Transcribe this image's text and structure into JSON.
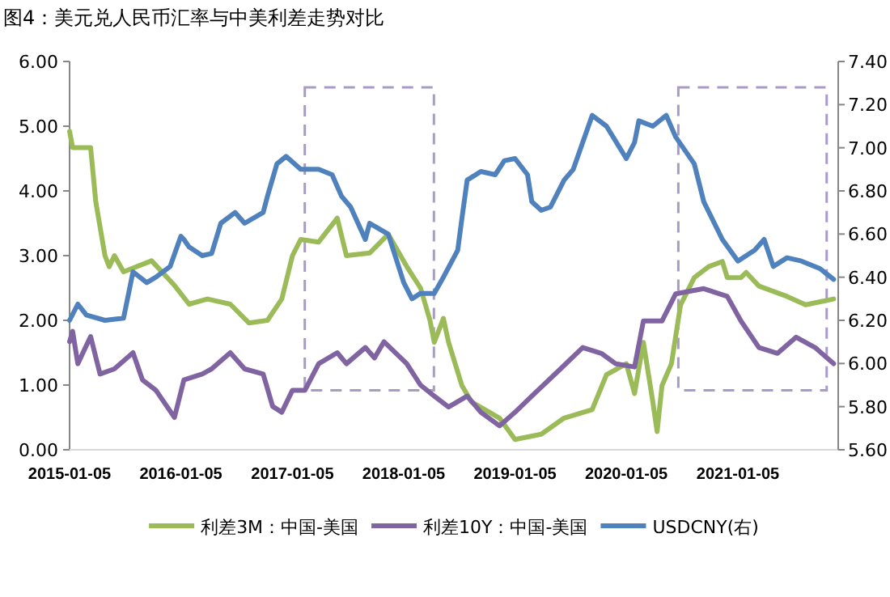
{
  "chart_data": {
    "type": "line",
    "title": "图4：美元兑人民币汇率与中美利差走势对比",
    "xlim": [
      "2015-01-05",
      "2021-11-30"
    ],
    "xticks": [
      {
        "value": "2015-01-05",
        "label": "2015-01-05"
      },
      {
        "value": "2016-01-05",
        "label": "2016-01-05"
      },
      {
        "value": "2017-01-05",
        "label": "2017-01-05"
      },
      {
        "value": "2018-01-05",
        "label": "2018-01-05"
      },
      {
        "value": "2019-01-05",
        "label": "2019-01-05"
      },
      {
        "value": "2020-01-05",
        "label": "2020-01-05"
      },
      {
        "value": "2021-01-05",
        "label": "2021-01-05"
      }
    ],
    "ylim": [
      0,
      6
    ],
    "yticks": [
      {
        "value": 0,
        "label": "0.00"
      },
      {
        "value": 1,
        "label": "1.00"
      },
      {
        "value": 2,
        "label": "2.00"
      },
      {
        "value": 3,
        "label": "3.00"
      },
      {
        "value": 4,
        "label": "4.00"
      },
      {
        "value": 5,
        "label": "5.00"
      },
      {
        "value": 6,
        "label": "6.00"
      }
    ],
    "y2lim": [
      5.6,
      7.4
    ],
    "y2ticks": [
      {
        "value": 5.6,
        "label": "5.60"
      },
      {
        "value": 5.8,
        "label": "5.80"
      },
      {
        "value": 6.0,
        "label": "6.00"
      },
      {
        "value": 6.2,
        "label": "6.20"
      },
      {
        "value": 6.4,
        "label": "6.40"
      },
      {
        "value": 6.6,
        "label": "6.60"
      },
      {
        "value": 6.8,
        "label": "6.80"
      },
      {
        "value": 7.0,
        "label": "7.00"
      },
      {
        "value": 7.2,
        "label": "7.20"
      },
      {
        "value": 7.4,
        "label": "7.40"
      }
    ],
    "legend": "bottom",
    "series": [
      {
        "name": "利差3M：中国-美国",
        "color": "#9bbb59",
        "x": [
          "2015-01-05",
          "2015-01-15",
          "2015-03-15",
          "2015-04-01",
          "2015-05-01",
          "2015-05-15",
          "2015-06-01",
          "2015-07-01",
          "2015-10-01",
          "2015-12-15",
          "2016-02-01",
          "2016-04-01",
          "2016-06-15",
          "2016-08-15",
          "2016-10-15",
          "2016-12-01",
          "2017-01-05",
          "2017-02-01",
          "2017-04-01",
          "2017-06-01",
          "2017-07-01",
          "2017-09-15",
          "2017-11-15",
          "2018-01-15",
          "2018-03-01",
          "2018-04-01",
          "2018-04-15",
          "2018-05-15",
          "2018-06-01",
          "2018-07-15",
          "2018-08-15",
          "2018-11-15",
          "2019-01-05",
          "2019-04-01",
          "2019-06-15",
          "2019-09-15",
          "2019-11-01",
          "2020-01-05",
          "2020-02-01",
          "2020-03-01",
          "2020-04-01",
          "2020-04-15",
          "2020-05-01",
          "2020-06-01",
          "2020-07-01",
          "2020-08-15",
          "2020-10-01",
          "2020-11-15",
          "2020-12-01",
          "2021-01-15",
          "2021-02-01",
          "2021-03-15",
          "2021-06-15",
          "2021-08-15",
          "2021-11-15"
        ],
        "values": [
          4.92,
          4.67,
          4.67,
          3.83,
          3.0,
          2.83,
          3.0,
          2.75,
          2.92,
          2.54,
          2.25,
          2.33,
          2.25,
          1.96,
          2.0,
          2.33,
          3.0,
          3.25,
          3.21,
          3.58,
          3.0,
          3.04,
          3.33,
          2.83,
          2.5,
          2.0,
          1.66,
          2.03,
          1.66,
          0.99,
          0.74,
          0.49,
          0.16,
          0.24,
          0.49,
          0.62,
          1.16,
          1.33,
          0.87,
          1.66,
          0.74,
          0.28,
          0.99,
          1.33,
          2.24,
          2.66,
          2.83,
          2.91,
          2.66,
          2.66,
          2.74,
          2.53,
          2.37,
          2.24,
          2.33
        ]
      },
      {
        "name": "利差10Y：中国-美国",
        "color": "#8064a2",
        "x": [
          "2015-01-05",
          "2015-01-15",
          "2015-02-01",
          "2015-03-15",
          "2015-04-15",
          "2015-06-01",
          "2015-08-01",
          "2015-09-01",
          "2015-10-15",
          "2015-12-15",
          "2016-01-15",
          "2016-03-15",
          "2016-04-15",
          "2016-06-15",
          "2016-08-01",
          "2016-10-01",
          "2016-11-01",
          "2016-12-01",
          "2017-01-05",
          "2017-02-15",
          "2017-04-01",
          "2017-06-01",
          "2017-07-01",
          "2017-09-01",
          "2017-10-01",
          "2017-11-01",
          "2018-01-15",
          "2018-03-01",
          "2018-04-15",
          "2018-06-01",
          "2018-08-01",
          "2018-09-15",
          "2018-11-15",
          "2019-01-05",
          "2019-03-01",
          "2019-06-01",
          "2019-08-15",
          "2019-10-15",
          "2019-12-01",
          "2020-02-01",
          "2020-03-01",
          "2020-05-01",
          "2020-06-15",
          "2020-09-15",
          "2020-12-01",
          "2021-01-15",
          "2021-03-15",
          "2021-05-15",
          "2021-07-15",
          "2021-09-15",
          "2021-11-15"
        ],
        "values": [
          1.67,
          1.83,
          1.33,
          1.75,
          1.17,
          1.25,
          1.5,
          1.08,
          0.92,
          0.5,
          1.08,
          1.17,
          1.25,
          1.5,
          1.25,
          1.17,
          0.67,
          0.58,
          0.92,
          0.92,
          1.33,
          1.5,
          1.33,
          1.58,
          1.42,
          1.67,
          1.33,
          1.0,
          0.83,
          0.66,
          0.83,
          0.58,
          0.37,
          0.58,
          0.83,
          1.24,
          1.58,
          1.49,
          1.33,
          1.28,
          1.99,
          1.99,
          2.41,
          2.49,
          2.37,
          1.99,
          1.58,
          1.49,
          1.74,
          1.58,
          1.33
        ]
      },
      {
        "name": "USDCNY(右)",
        "color": "#4f81bd",
        "axis": "y2",
        "x": [
          "2015-01-05",
          "2015-02-01",
          "2015-03-01",
          "2015-05-01",
          "2015-07-01",
          "2015-08-01",
          "2015-09-15",
          "2015-10-15",
          "2015-12-01",
          "2016-01-05",
          "2016-01-15",
          "2016-02-01",
          "2016-03-15",
          "2016-04-15",
          "2016-05-15",
          "2016-07-01",
          "2016-08-01",
          "2016-10-01",
          "2016-10-15",
          "2016-11-15",
          "2016-12-15",
          "2017-02-01",
          "2017-04-01",
          "2017-05-15",
          "2017-06-15",
          "2017-07-15",
          "2017-09-01",
          "2017-09-15",
          "2017-10-15",
          "2017-11-15",
          "2018-01-05",
          "2018-02-01",
          "2018-03-01",
          "2018-04-15",
          "2018-05-15",
          "2018-07-01",
          "2018-07-15",
          "2018-08-01",
          "2018-09-15",
          "2018-11-01",
          "2018-12-01",
          "2019-01-05",
          "2019-02-15",
          "2019-03-01",
          "2019-04-01",
          "2019-05-01",
          "2019-06-15",
          "2019-07-15",
          "2019-09-15",
          "2019-11-01",
          "2020-01-05",
          "2020-02-01",
          "2020-02-15",
          "2020-04-01",
          "2020-05-15",
          "2020-06-15",
          "2020-08-15",
          "2020-09-15",
          "2020-11-15",
          "2021-01-05",
          "2021-03-01",
          "2021-04-01",
          "2021-05-01",
          "2021-06-15",
          "2021-08-01",
          "2021-10-01",
          "2021-11-15"
        ],
        "values": [
          6.2,
          6.275,
          6.225,
          6.2,
          6.21,
          6.425,
          6.375,
          6.4,
          6.45,
          6.59,
          6.575,
          6.54,
          6.5,
          6.51,
          6.65,
          6.7,
          6.65,
          6.7,
          6.775,
          6.925,
          6.96,
          6.9,
          6.9,
          6.875,
          6.775,
          6.725,
          6.575,
          6.65,
          6.625,
          6.6,
          6.375,
          6.3,
          6.325,
          6.325,
          6.4,
          6.525,
          6.675,
          6.85,
          6.89,
          6.875,
          6.94,
          6.95,
          6.875,
          6.75,
          6.71,
          6.725,
          6.85,
          6.9,
          7.15,
          7.1,
          6.95,
          7.025,
          7.125,
          7.1,
          7.15,
          7.05,
          6.925,
          6.75,
          6.575,
          6.475,
          6.525,
          6.575,
          6.45,
          6.49,
          6.475,
          6.44,
          6.39
        ]
      }
    ]
  }
}
